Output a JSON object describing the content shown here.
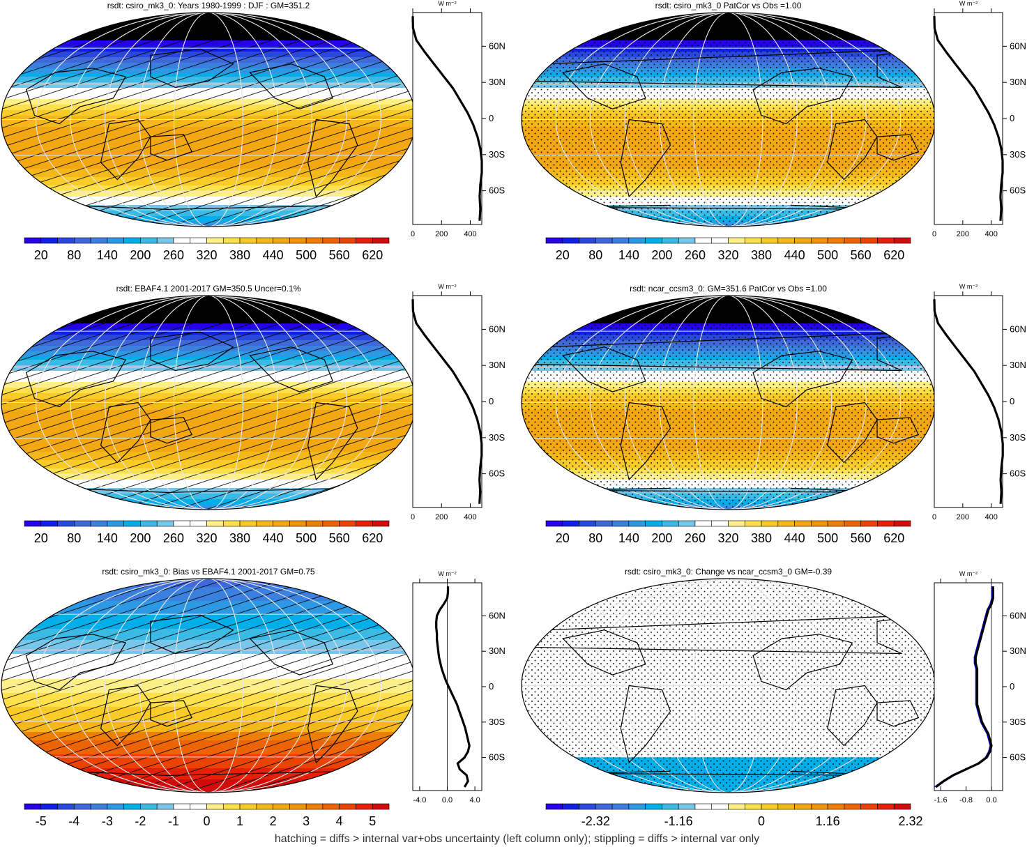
{
  "footer": "hatching = diffs > internal var+obs uncertainty (left column only); stippling = diffs > internal var only",
  "profile_unit": "W m⁻²",
  "lat_ticks": [
    "60N",
    "30N",
    "0",
    "30S",
    "60S"
  ],
  "colors": {
    "abs": [
      "#2600e6",
      "#0f1fe3",
      "#2b48dd",
      "#3f68db",
      "#3b80de",
      "#2d98e4",
      "#00aee9",
      "#3bbae6",
      "#77c7ea",
      "#ffffff",
      "#ffffff",
      "#ffef87",
      "#fde04b",
      "#f8cb28",
      "#f5b81b",
      "#f3a712",
      "#f0950b",
      "#ee7e06",
      "#ec6405",
      "#ea4303",
      "#e61f08",
      "#d10c0c"
    ],
    "diff": [
      "#2600e6",
      "#0f1fe3",
      "#2b48dd",
      "#3f68db",
      "#3b80de",
      "#2d98e4",
      "#00aee9",
      "#3bbae6",
      "#77c7ea",
      "#ffffff",
      "#ffffff",
      "#ffef87",
      "#fde04b",
      "#f8cb28",
      "#f5b81b",
      "#f3a712",
      "#f0950b",
      "#ee7e06",
      "#ec6405",
      "#ea4303",
      "#e61f08",
      "#d10c0c"
    ]
  },
  "chart_data": [
    {
      "type": "heatmap",
      "title": "rsdt: csiro_mk3_0: Years 1980-1999 : DJF : GM=351.2",
      "colorbar_labels": [
        "20",
        "80",
        "140",
        "200",
        "260",
        "320",
        "380",
        "440",
        "500",
        "560",
        "620"
      ],
      "colorbar_range": [
        -10,
        650
      ],
      "pattern": "hatch",
      "profile": {
        "x_ticks": [
          "0",
          "200",
          "400"
        ],
        "xlim": [
          0,
          480
        ],
        "lat": [
          -85,
          -75,
          -65,
          -55,
          -45,
          -35,
          -25,
          -15,
          -5,
          5,
          15,
          25,
          35,
          45,
          55,
          65,
          75,
          85
        ],
        "values": [
          465,
          470,
          465,
          470,
          480,
          480,
          470,
          450,
          420,
          380,
          330,
          280,
          215,
          150,
          85,
          25,
          2,
          0
        ]
      }
    },
    {
      "type": "heatmap",
      "title": "rsdt: csiro_mk3_0 PatCor vs Obs =1.00",
      "colorbar_labels": [
        "20",
        "80",
        "140",
        "200",
        "260",
        "320",
        "380",
        "440",
        "500",
        "560",
        "620"
      ],
      "colorbar_range": [
        -10,
        650
      ],
      "pattern": "stipple",
      "profile": {
        "x_ticks": [
          "0",
          "200",
          "400"
        ],
        "xlim": [
          0,
          480
        ],
        "lat": [
          -85,
          -75,
          -65,
          -55,
          -45,
          -35,
          -25,
          -15,
          -5,
          5,
          15,
          25,
          35,
          45,
          55,
          65,
          75,
          85
        ],
        "values": [
          465,
          470,
          465,
          470,
          480,
          480,
          470,
          450,
          420,
          380,
          330,
          280,
          215,
          150,
          85,
          25,
          2,
          0
        ]
      }
    },
    {
      "type": "heatmap",
      "title": "rsdt: EBAF4.1 2001-2017 GM=350.5 Uncer=0.1%",
      "colorbar_labels": [
        "20",
        "80",
        "140",
        "200",
        "260",
        "320",
        "380",
        "440",
        "500",
        "560",
        "620"
      ],
      "colorbar_range": [
        -10,
        650
      ],
      "pattern": "hatch",
      "profile": {
        "x_ticks": [
          "0",
          "200",
          "400"
        ],
        "xlim": [
          0,
          480
        ],
        "lat": [
          -85,
          -75,
          -65,
          -55,
          -45,
          -35,
          -25,
          -15,
          -5,
          5,
          15,
          25,
          35,
          45,
          55,
          65,
          75,
          85
        ],
        "values": [
          464,
          469,
          464,
          469,
          479,
          479,
          469,
          449,
          419,
          379,
          329,
          279,
          214,
          149,
          84,
          24,
          2,
          0
        ]
      }
    },
    {
      "type": "heatmap",
      "title": "rsdt: ncar_ccsm3_0: GM=351.6 PatCor vs Obs =1.00",
      "colorbar_labels": [
        "20",
        "80",
        "140",
        "200",
        "260",
        "320",
        "380",
        "440",
        "500",
        "560",
        "620"
      ],
      "colorbar_range": [
        -10,
        650
      ],
      "pattern": "stipple",
      "profile": {
        "x_ticks": [
          "0",
          "200",
          "400"
        ],
        "xlim": [
          0,
          480
        ],
        "lat": [
          -85,
          -75,
          -65,
          -55,
          -45,
          -35,
          -25,
          -15,
          -5,
          5,
          15,
          25,
          35,
          45,
          55,
          65,
          75,
          85
        ],
        "values": [
          466,
          471,
          466,
          471,
          481,
          481,
          471,
          451,
          421,
          381,
          331,
          281,
          216,
          151,
          86,
          26,
          2,
          0
        ]
      }
    },
    {
      "type": "heatmap",
      "title": "rsdt: csiro_mk3_0: Bias vs EBAF4.1 2001-2017 GM=0.75",
      "colorbar_labels": [
        "-5",
        "-4",
        "-3",
        "-2",
        "-1",
        "0",
        "1",
        "2",
        "3",
        "4",
        "5"
      ],
      "colorbar_range": [
        -5.5,
        5.5
      ],
      "pattern": "hatch",
      "profile": {
        "x_ticks": [
          "-4.0",
          "0.0",
          "4.0"
        ],
        "xlim": [
          -5,
          5
        ],
        "lat": [
          -85,
          -80,
          -75,
          -70,
          -65,
          -60,
          -55,
          -50,
          -45,
          -40,
          -35,
          -30,
          -25,
          -20,
          -15,
          -10,
          -5,
          0,
          5,
          10,
          15,
          20,
          25,
          30,
          35,
          40,
          45,
          50,
          55,
          60,
          65,
          70,
          75,
          80,
          85
        ],
        "values": [
          2.5,
          3.0,
          2.8,
          1.8,
          1.5,
          2.5,
          3.0,
          3.2,
          3.0,
          2.8,
          2.6,
          2.3,
          2.0,
          1.7,
          1.4,
          1.0,
          0.6,
          0.2,
          -0.2,
          -0.5,
          -0.8,
          -1.0,
          -1.2,
          -1.3,
          -1.4,
          -1.5,
          -1.5,
          -1.6,
          -1.6,
          -1.5,
          -1.1,
          -0.5,
          0.0,
          0.1,
          0.1
        ]
      }
    },
    {
      "type": "heatmap",
      "title": "rsdt: csiro_mk3_0: Change vs ncar_ccsm3_0 GM=-0.39",
      "colorbar_labels": [
        "-2.32",
        "-1.16",
        "0",
        "1.16",
        "2.32"
      ],
      "colorbar_range": [
        -3.19,
        3.19
      ],
      "pattern": "stipple",
      "profile": {
        "x_ticks": [
          "-1.6",
          "-0.8",
          "0.0"
        ],
        "xlim": [
          -1.8,
          0.35
        ],
        "lat": [
          -85,
          -80,
          -75,
          -70,
          -65,
          -60,
          -55,
          -50,
          -45,
          -40,
          -35,
          -30,
          -25,
          -20,
          -15,
          -10,
          -5,
          0,
          5,
          10,
          15,
          20,
          25,
          30,
          35,
          40,
          45,
          50,
          55,
          60,
          65,
          70,
          75,
          80,
          85
        ],
        "values": [
          -1.75,
          -1.5,
          -1.2,
          -0.8,
          -0.4,
          -0.15,
          -0.05,
          0.0,
          -0.05,
          -0.1,
          -0.2,
          -0.3,
          -0.35,
          -0.4,
          -0.45,
          -0.45,
          -0.45,
          -0.45,
          -0.45,
          -0.45,
          -0.45,
          -0.5,
          -0.5,
          -0.45,
          -0.4,
          -0.35,
          -0.3,
          -0.25,
          -0.2,
          -0.15,
          -0.1,
          0.0,
          0.05,
          0.05,
          0.05
        ]
      }
    }
  ]
}
